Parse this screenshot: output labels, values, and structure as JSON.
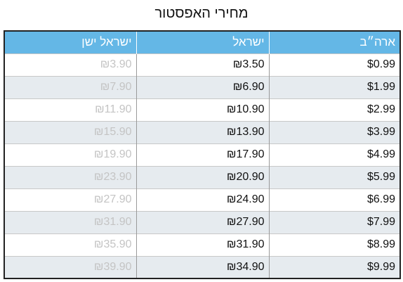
{
  "title": "מחירי האפסטור",
  "table": {
    "headers": {
      "us": "ארה״ב",
      "israel": "ישראל",
      "israel_old": "ישראל ישן"
    },
    "rows": [
      {
        "us": "$0.99",
        "israel": "₪3.50",
        "israel_old": "₪3.90"
      },
      {
        "us": "$1.99",
        "israel": "₪6.90",
        "israel_old": "₪7.90"
      },
      {
        "us": "$2.99",
        "israel": "₪10.90",
        "israel_old": "₪11.90"
      },
      {
        "us": "$3.99",
        "israel": "₪13.90",
        "israel_old": "₪15.90"
      },
      {
        "us": "$4.99",
        "israel": "₪17.90",
        "israel_old": "₪19.90"
      },
      {
        "us": "$5.99",
        "israel": "₪20.90",
        "israel_old": "₪23.90"
      },
      {
        "us": "$6.99",
        "israel": "₪24.90",
        "israel_old": "₪27.90"
      },
      {
        "us": "$7.99",
        "israel": "₪27.90",
        "israel_old": "₪31.90"
      },
      {
        "us": "$8.99",
        "israel": "₪31.90",
        "israel_old": "₪35.90"
      },
      {
        "us": "$9.99",
        "israel": "₪34.90",
        "israel_old": "₪39.90"
      }
    ]
  },
  "colors": {
    "header_background": "#64b7e6",
    "header_text": "#ffffff",
    "stripe": "#e6ebef",
    "old_price_text": "#c4c4c4"
  }
}
